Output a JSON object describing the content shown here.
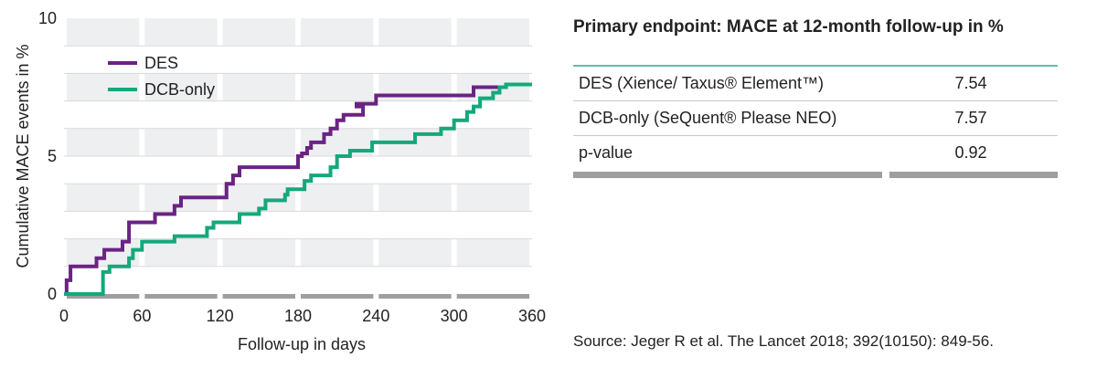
{
  "chart_data": {
    "type": "line",
    "xlabel": "Follow-up in days",
    "ylabel": "Cumulative MACE events in %",
    "xlim": [
      0,
      360
    ],
    "ylim": [
      0,
      10
    ],
    "x_ticks": [
      "0",
      "60",
      "120",
      "180",
      "240",
      "300",
      "360"
    ],
    "y_ticks": [
      "0",
      "5",
      "10"
    ],
    "grid": "alternating horizontal bands",
    "legend_position": "top-left",
    "series": [
      {
        "name": "DES",
        "color": "#6a2383",
        "x": [
          0,
          2,
          5,
          25,
          31,
          45,
          50,
          70,
          85,
          90,
          125,
          130,
          135,
          180,
          183,
          187,
          190,
          200,
          205,
          210,
          215,
          230,
          225,
          240,
          300,
          315,
          340,
          360
        ],
        "y": [
          0,
          0.5,
          1.0,
          1.3,
          1.6,
          1.9,
          2.6,
          2.9,
          3.2,
          3.5,
          4.0,
          4.3,
          4.6,
          5.0,
          5.1,
          5.3,
          5.5,
          5.8,
          6.0,
          6.3,
          6.5,
          6.8,
          6.9,
          7.2,
          7.2,
          7.5,
          7.6,
          7.6
        ]
      },
      {
        "name": "DCB-only",
        "color": "#14a87c",
        "x": [
          0,
          30,
          35,
          50,
          53,
          60,
          85,
          110,
          115,
          135,
          150,
          155,
          170,
          172,
          185,
          190,
          205,
          210,
          220,
          237,
          270,
          290,
          300,
          310,
          315,
          320,
          330,
          335,
          340,
          360
        ],
        "y": [
          0,
          0.8,
          1.0,
          1.3,
          1.6,
          1.9,
          2.1,
          2.4,
          2.6,
          2.9,
          3.1,
          3.4,
          3.6,
          3.8,
          4.1,
          4.3,
          4.6,
          5.0,
          5.2,
          5.5,
          5.8,
          6.0,
          6.3,
          6.6,
          6.8,
          7.1,
          7.3,
          7.5,
          7.6,
          7.6
        ]
      }
    ]
  },
  "table": {
    "title": "Primary endpoint: MACE at 12-month follow-up in %",
    "rows": [
      {
        "label": "DES (Xience/ Taxus® Element™)",
        "value": "7.54"
      },
      {
        "label": "DCB-only (SeQuent® Please NEO)",
        "value": "7.57"
      },
      {
        "label": "p-value",
        "value": "0.92"
      }
    ]
  },
  "source": "Source: Jeger R et al. The Lancet 2018; 392(10150): 849-56."
}
